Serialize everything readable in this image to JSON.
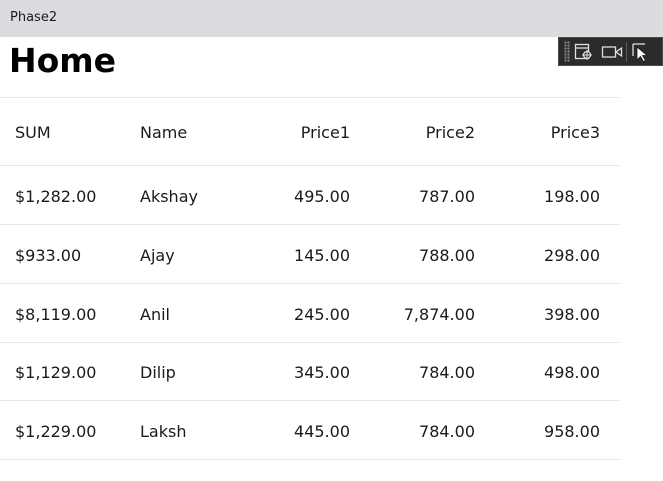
{
  "window": {
    "title": "Phase2"
  },
  "page": {
    "title": "Home"
  },
  "toolbar": {
    "icons": [
      "live-visual-tree-icon",
      "record-icon",
      "select-element-icon"
    ]
  },
  "table": {
    "headers": [
      "SUM",
      "Name",
      "Price1",
      "Price2",
      "Price3"
    ],
    "rows": [
      [
        "$1,282.00",
        "Akshay",
        "495.00",
        "787.00",
        "198.00"
      ],
      [
        "$933.00",
        "Ajay",
        "145.00",
        "788.00",
        "298.00"
      ],
      [
        "$8,119.00",
        "Anil",
        "245.00",
        "7,874.00",
        "398.00"
      ],
      [
        "$1,129.00",
        "Dilip",
        "345.00",
        "784.00",
        "498.00"
      ],
      [
        "$1,229.00",
        "Laksh",
        "445.00",
        "784.00",
        "958.00"
      ]
    ]
  }
}
